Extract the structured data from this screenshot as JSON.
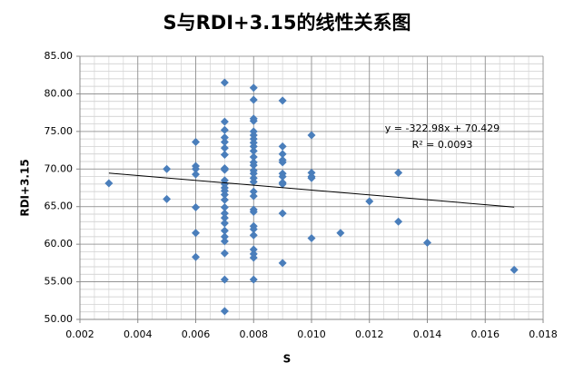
{
  "chart_data": {
    "type": "scatter",
    "title": "S与RDI+3.15的线性关系图",
    "x_label": "S",
    "y_label": "RDI+3.15",
    "color": "#4a7ebb",
    "grid": true,
    "x_minor_step": 0.0005,
    "y_minor_step": 1,
    "x": [
      0.003,
      0.005,
      0.005,
      0.006,
      0.006,
      0.006,
      0.006,
      0.006,
      0.006,
      0.006,
      0.007,
      0.007,
      0.007,
      0.007,
      0.007,
      0.007,
      0.007,
      0.007,
      0.007,
      0.007,
      0.007,
      0.007,
      0.007,
      0.007,
      0.007,
      0.007,
      0.007,
      0.007,
      0.007,
      0.007,
      0.007,
      0.007,
      0.007,
      0.007,
      0.007,
      0.008,
      0.008,
      0.008,
      0.008,
      0.008,
      0.008,
      0.008,
      0.008,
      0.008,
      0.008,
      0.008,
      0.008,
      0.008,
      0.008,
      0.008,
      0.008,
      0.008,
      0.008,
      0.008,
      0.008,
      0.008,
      0.008,
      0.008,
      0.008,
      0.008,
      0.008,
      0.008,
      0.008,
      0.009,
      0.009,
      0.009,
      0.009,
      0.009,
      0.009,
      0.009,
      0.009,
      0.009,
      0.009,
      0.009,
      0.01,
      0.01,
      0.01,
      0.01,
      0.01,
      0.011,
      0.012,
      0.013,
      0.013,
      0.014,
      0.017
    ],
    "values": [
      68.1,
      70.0,
      66.0,
      73.6,
      70.4,
      70.0,
      69.3,
      64.9,
      61.5,
      58.3,
      81.5,
      76.3,
      75.2,
      74.2,
      73.6,
      72.8,
      71.9,
      70.1,
      69.9,
      68.5,
      68.0,
      67.5,
      67.1,
      66.6,
      65.9,
      64.9,
      64.1,
      63.5,
      62.8,
      61.8,
      61.0,
      60.4,
      58.8,
      55.3,
      51.1,
      80.8,
      79.2,
      76.7,
      76.4,
      75.0,
      74.5,
      74.0,
      73.5,
      73.0,
      72.4,
      71.6,
      70.9,
      70.5,
      69.8,
      69.4,
      68.8,
      68.3,
      67.0,
      66.4,
      64.6,
      64.3,
      62.4,
      62.0,
      61.2,
      59.3,
      58.7,
      58.2,
      55.3,
      79.1,
      73.0,
      72.0,
      71.2,
      70.9,
      69.4,
      69.0,
      68.2,
      68.0,
      64.1,
      57.5,
      74.5,
      69.5,
      69.0,
      68.8,
      60.8,
      61.5,
      65.7,
      69.5,
      63.0,
      60.2,
      56.6
    ],
    "trendline": {
      "slope": -322.98,
      "intercept": 70.429,
      "xrange": [
        0.003,
        0.017
      ],
      "equation": "y = -322.98x  + 70.429",
      "r2": "R² = 0.0093"
    },
    "xlim": [
      0.002,
      0.018
    ],
    "xticks": [
      0.002,
      0.004,
      0.006,
      0.008,
      {
        "value": 0.01,
        "label": "0.010"
      },
      0.012,
      0.014,
      0.016,
      0.018
    ],
    "ylim": [
      50,
      85
    ],
    "yticks": [
      {
        "value": 50,
        "label": "50.00"
      },
      {
        "value": 55,
        "label": "55.00"
      },
      {
        "value": 60,
        "label": "60.00"
      },
      {
        "value": 65,
        "label": "65.00"
      },
      {
        "value": 70,
        "label": "70.00"
      },
      {
        "value": 75,
        "label": "75.00"
      },
      {
        "value": 80,
        "label": "80.00"
      },
      {
        "value": 85,
        "label": "85.00"
      }
    ]
  }
}
